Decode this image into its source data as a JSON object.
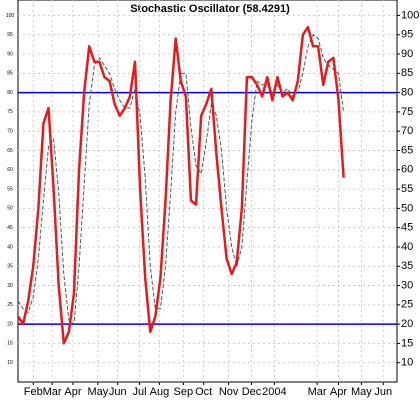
{
  "chart_data": {
    "type": "line",
    "title": "Stochastic Oscillator (58.4291)",
    "xticks": [
      {
        "value": 3,
        "label": "Feb"
      },
      {
        "value": 6.7,
        "label": "Mar"
      },
      {
        "value": 10.8,
        "label": "Apr"
      },
      {
        "value": 15.7,
        "label": "May"
      },
      {
        "value": 19.6,
        "label": "Jun"
      },
      {
        "value": 23.9,
        "label": "Jul"
      },
      {
        "value": 27.8,
        "label": "Aug"
      },
      {
        "value": 32.5,
        "label": "Sep"
      },
      {
        "value": 36.5,
        "label": "Oct"
      },
      {
        "value": 41.4,
        "label": "Nov"
      },
      {
        "value": 45.9,
        "label": "Dec"
      },
      {
        "value": 50.4,
        "label": "2004"
      },
      {
        "value": 58.8,
        "label": "Mar"
      },
      {
        "value": 63,
        "label": "Apr"
      },
      {
        "value": 67.5,
        "label": "May"
      },
      {
        "value": 71.8,
        "label": "Jun"
      }
    ],
    "xlim": [
      0,
      74.5
    ],
    "ylim": [
      5,
      104
    ],
    "yticks": [
      10,
      15,
      20,
      25,
      30,
      35,
      40,
      45,
      50,
      55,
      60,
      65,
      70,
      75,
      80,
      85,
      90,
      95,
      100
    ],
    "grid": true,
    "reference_lines": [
      80,
      20
    ],
    "reference_color": "#0000ee",
    "series": [
      {
        "color": "#e8191b",
        "dashed": false,
        "values": [
          22,
          20,
          26,
          35,
          50,
          72,
          76,
          55,
          30,
          15,
          18,
          28,
          60,
          80,
          92,
          88,
          88,
          84,
          83,
          77,
          74,
          76,
          79,
          88,
          55,
          32,
          18,
          22,
          32,
          52,
          78,
          94,
          83,
          79,
          52,
          51,
          74,
          77,
          81,
          64,
          50,
          37,
          33,
          36,
          50,
          84,
          84,
          82,
          79,
          84,
          78,
          84,
          79,
          80,
          78,
          83,
          95,
          97,
          92,
          92,
          82,
          88,
          89,
          78,
          58
        ]
      },
      {
        "color": "#555555",
        "dashed": true,
        "values": [
          26,
          24,
          23,
          27,
          37,
          52,
          66,
          68,
          54,
          33,
          21,
          20,
          35,
          56,
          77,
          87,
          89,
          87,
          85,
          81,
          78,
          76,
          76,
          81,
          74,
          58,
          35,
          24,
          24,
          35,
          54,
          75,
          85,
          85,
          71,
          61,
          59,
          67,
          77,
          74,
          65,
          50,
          40,
          35,
          40,
          57,
          73,
          83,
          82,
          82,
          80,
          82,
          80,
          81,
          79,
          80,
          85,
          92,
          95,
          94,
          89,
          87,
          86,
          85,
          75
        ]
      }
    ]
  }
}
